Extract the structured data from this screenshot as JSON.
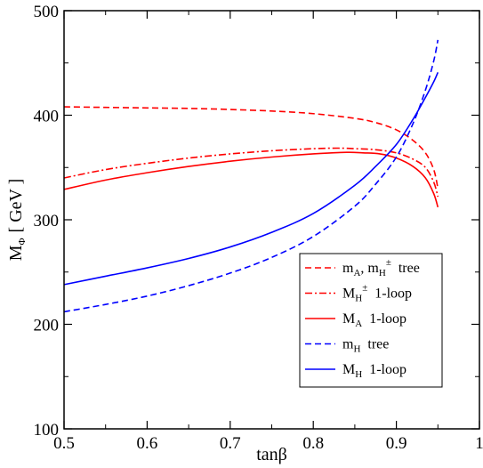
{
  "chart_data": {
    "type": "line",
    "title": "",
    "xlabel": {
      "main": "tan",
      "greek": "β"
    },
    "ylabel": {
      "main": "M",
      "sub": "Φ",
      "unit": "[ GeV ]"
    },
    "xlim": [
      0.5,
      1.0
    ],
    "ylim": [
      100,
      500
    ],
    "xticks": [
      0.5,
      0.6,
      0.7,
      0.8,
      0.9,
      1.0
    ],
    "xtick_labels": [
      "0.5",
      "0.6",
      "0.7",
      "0.8",
      "0.9",
      "1"
    ],
    "yticks": [
      100,
      200,
      300,
      400,
      500
    ],
    "ytick_labels": [
      "100",
      "200",
      "300",
      "400",
      "500"
    ],
    "grid": false,
    "legend_position": "bottom-right",
    "series": [
      {
        "legend": {
          "sym1": "m",
          "sub1": "A",
          "sep": ", ",
          "sym2": "m",
          "sub2": "H",
          "sup2": "±",
          "tag": "tree"
        },
        "color": "#ff0000",
        "dash": "dashed",
        "x": [
          0.5,
          0.55,
          0.6,
          0.65,
          0.7,
          0.75,
          0.8,
          0.85,
          0.875,
          0.9,
          0.92,
          0.935,
          0.945,
          0.95
        ],
        "y": [
          408,
          407.5,
          407,
          406.5,
          405.5,
          404,
          401.5,
          397,
          393,
          386,
          376,
          364,
          348,
          330
        ]
      },
      {
        "legend": {
          "sym1": "M",
          "sub1": "H",
          "sup1": "±",
          "tag": "1-loop"
        },
        "color": "#ff0000",
        "dash": "dashdot",
        "x": [
          0.5,
          0.55,
          0.6,
          0.65,
          0.7,
          0.75,
          0.8,
          0.83,
          0.85,
          0.875,
          0.9,
          0.92,
          0.935,
          0.945,
          0.95
        ],
        "y": [
          340,
          348,
          354,
          359,
          363,
          366,
          368,
          368.5,
          368,
          367,
          364,
          358,
          350,
          336,
          322
        ]
      },
      {
        "legend": {
          "sym1": "M",
          "sub1": "A",
          "tag": "1-loop"
        },
        "color": "#ff0000",
        "dash": "solid",
        "x": [
          0.5,
          0.55,
          0.6,
          0.65,
          0.7,
          0.75,
          0.8,
          0.84,
          0.86,
          0.88,
          0.9,
          0.92,
          0.935,
          0.945,
          0.95
        ],
        "y": [
          329,
          338,
          345,
          351,
          356,
          360,
          363,
          364.5,
          364,
          363,
          359,
          351,
          340,
          325,
          312
        ]
      },
      {
        "legend": {
          "sym1": "m",
          "sub1": "H",
          "tag": "tree"
        },
        "color": "#0000ff",
        "dash": "dashed",
        "x": [
          0.5,
          0.55,
          0.6,
          0.65,
          0.7,
          0.75,
          0.8,
          0.85,
          0.875,
          0.9,
          0.92,
          0.935,
          0.945,
          0.95
        ],
        "y": [
          212,
          219,
          227,
          237,
          249,
          264,
          284,
          313,
          334,
          360,
          392,
          424,
          452,
          472
        ]
      },
      {
        "legend": {
          "sym1": "M",
          "sub1": "H",
          "tag": "1-loop"
        },
        "color": "#0000ff",
        "dash": "solid",
        "x": [
          0.5,
          0.55,
          0.6,
          0.65,
          0.7,
          0.75,
          0.8,
          0.85,
          0.875,
          0.9,
          0.92,
          0.935,
          0.945,
          0.95
        ],
        "y": [
          238,
          246,
          254,
          263,
          274,
          288,
          306,
          333,
          351,
          372,
          396,
          417,
          432,
          441
        ]
      }
    ]
  }
}
